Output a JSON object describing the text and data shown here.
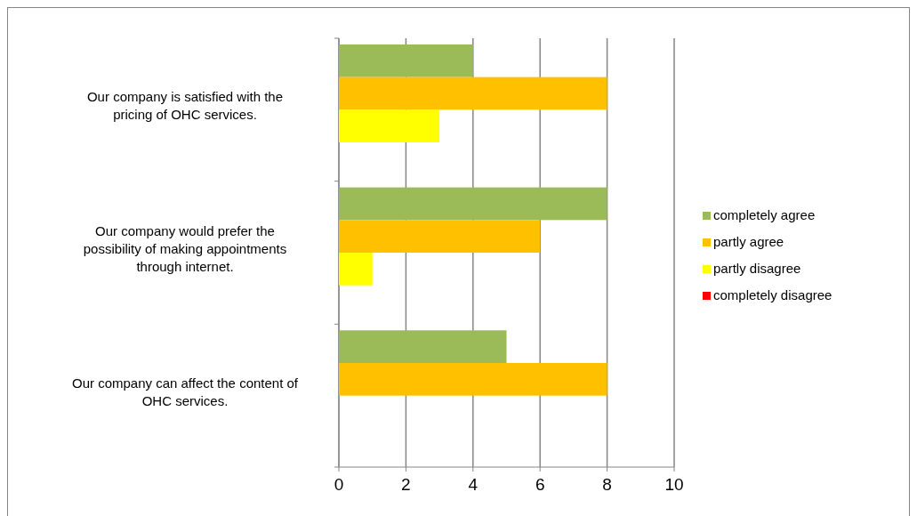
{
  "chart_data": {
    "type": "bar",
    "orientation": "horizontal",
    "categories": [
      "Our company is satisfied with the pricing of OHC services.",
      "Our company would prefer the possibility of making appointments through internet.",
      "Our company can affect the content of OHC services."
    ],
    "series": [
      {
        "name": "completely agree",
        "color": "#9bbb59",
        "values": [
          4,
          8,
          5
        ]
      },
      {
        "name": "partly agree",
        "color": "#ffc000",
        "values": [
          8,
          6,
          8
        ]
      },
      {
        "name": "partly disagree",
        "color": "#ffff00",
        "values": [
          3,
          1,
          0
        ]
      },
      {
        "name": "completely disagree",
        "color": "#ff0000",
        "values": [
          0,
          0,
          0
        ]
      }
    ],
    "xlim": [
      0,
      10
    ],
    "xticks": [
      0,
      2,
      4,
      6,
      8,
      10
    ],
    "grid": "x",
    "legend": "right"
  }
}
